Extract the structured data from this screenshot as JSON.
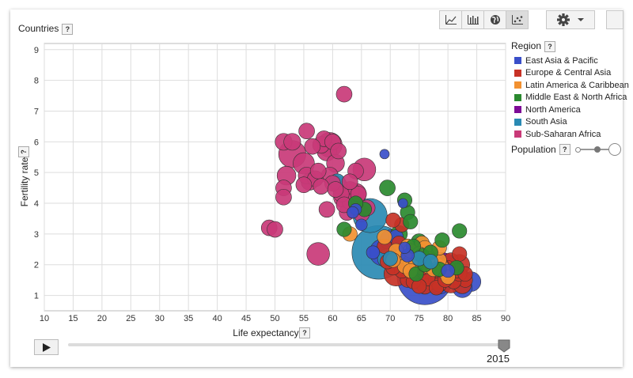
{
  "toolbar": {
    "buttons": [
      {
        "icon": "line-chart-icon"
      },
      {
        "icon": "bar-chart-icon"
      },
      {
        "icon": "globe-icon"
      },
      {
        "icon": "bubble-chart-icon",
        "active": true
      }
    ],
    "settings_icon": "gear-icon"
  },
  "countries_label": "Countries",
  "help_label": "?",
  "region_title": "Region",
  "population_label": "Population",
  "year": "2015",
  "chart_data": {
    "type": "scatter",
    "xlabel": "Life expectancy",
    "ylabel": "Fertility rate",
    "xlim": [
      10,
      90
    ],
    "ylim": [
      0.5,
      9.2
    ],
    "xticks": [
      10,
      15,
      20,
      25,
      30,
      35,
      40,
      45,
      50,
      55,
      60,
      65,
      70,
      75,
      80,
      85,
      90
    ],
    "yticks": [
      1,
      2,
      3,
      4,
      5,
      6,
      7,
      8,
      9
    ],
    "grid": true,
    "legend_position": "right",
    "series": [
      {
        "name": "East Asia & Pacific",
        "color": "#3a4fc9",
        "points": [
          [
            76,
            1.6,
            1.0
          ],
          [
            84,
            1.45,
            0.09
          ],
          [
            68.7,
            2.4,
            0.19
          ],
          [
            78.5,
            1.45,
            0.16
          ],
          [
            82.5,
            1.25,
            0.09
          ],
          [
            70,
            2.8,
            0.1
          ],
          [
            73,
            2.1,
            0.1
          ],
          [
            69,
            5.6,
            0.01
          ],
          [
            65,
            3.3,
            0.02
          ],
          [
            64,
            3.8,
            0.02
          ],
          [
            73,
            2.3,
            0.03
          ],
          [
            71,
            2.9,
            0.04
          ],
          [
            80,
            1.8,
            0.03
          ],
          [
            75,
            1.8,
            0.04
          ],
          [
            67,
            2.4,
            0.03
          ],
          [
            63.5,
            3.7,
            0.02
          ],
          [
            72.2,
            4.0,
            0.01
          ],
          [
            72.5,
            2.55,
            0.02
          ]
        ]
      },
      {
        "name": "Europe & Central Asia",
        "color": "#c73226",
        "points": [
          [
            82,
            2.0,
            0.1
          ],
          [
            81.5,
            1.6,
            0.09
          ],
          [
            80.5,
            1.4,
            0.09
          ],
          [
            71,
            1.7,
            0.15
          ],
          [
            82.5,
            1.35,
            0.07
          ],
          [
            77,
            1.45,
            0.06
          ],
          [
            80,
            1.65,
            0.06
          ],
          [
            74,
            1.6,
            0.05
          ],
          [
            76,
            1.3,
            0.05
          ],
          [
            78,
            1.5,
            0.05
          ],
          [
            79,
            1.7,
            0.04
          ],
          [
            81,
            1.9,
            0.04
          ],
          [
            83,
            1.5,
            0.04
          ],
          [
            75,
            1.7,
            0.04
          ],
          [
            73,
            1.5,
            0.04
          ],
          [
            72,
            1.8,
            0.04
          ],
          [
            71.5,
            2.7,
            0.04
          ],
          [
            70.5,
            1.9,
            0.04
          ],
          [
            69.5,
            2.1,
            0.04
          ],
          [
            69,
            2.6,
            0.04
          ],
          [
            74.5,
            2.1,
            0.04
          ],
          [
            81,
            1.45,
            0.04
          ],
          [
            78.5,
            1.35,
            0.04
          ],
          [
            77.5,
            2.0,
            0.04
          ],
          [
            80.5,
            2.15,
            0.04
          ],
          [
            82,
            1.7,
            0.04
          ],
          [
            76.5,
            1.55,
            0.04
          ],
          [
            75.5,
            1.9,
            0.04
          ],
          [
            78,
            1.25,
            0.04
          ],
          [
            79.5,
            1.5,
            0.04
          ],
          [
            73.5,
            2.3,
            0.04
          ],
          [
            77,
            2.4,
            0.04
          ],
          [
            82,
            2.35,
            0.04
          ],
          [
            72,
            3.3,
            0.04
          ],
          [
            70.5,
            3.45,
            0.04
          ],
          [
            81.5,
            1.8,
            0.04
          ],
          [
            80,
            1.9,
            0.04
          ],
          [
            76,
            2.1,
            0.04
          ],
          [
            74,
            1.45,
            0.04
          ],
          [
            83,
            1.7,
            0.04
          ],
          [
            75,
            1.3,
            0.04
          ],
          [
            79,
            1.95,
            0.04
          ]
        ]
      },
      {
        "name": "Latin America & Caribbean",
        "color": "#f29131",
        "points": [
          [
            75,
            1.8,
            0.14
          ],
          [
            77,
            2.2,
            0.08
          ],
          [
            74.5,
            2.5,
            0.05
          ],
          [
            76,
            2.3,
            0.05
          ],
          [
            79,
            1.9,
            0.04
          ],
          [
            73,
            2.6,
            0.04
          ],
          [
            72,
            2.3,
            0.04
          ],
          [
            69,
            2.9,
            0.04
          ],
          [
            75.5,
            2.2,
            0.04
          ],
          [
            78,
            2.0,
            0.04
          ],
          [
            77,
            2.4,
            0.04
          ],
          [
            74,
            2.3,
            0.04
          ],
          [
            79.5,
            1.75,
            0.04
          ],
          [
            76.5,
            1.95,
            0.04
          ],
          [
            73.5,
            2.1,
            0.04
          ],
          [
            71,
            2.45,
            0.04
          ],
          [
            75.5,
            2.7,
            0.04
          ],
          [
            63,
            3.0,
            0.04
          ],
          [
            72.5,
            1.95,
            0.04
          ],
          [
            80,
            1.6,
            0.04
          ],
          [
            78.5,
            2.15,
            0.04
          ],
          [
            77.5,
            1.85,
            0.04
          ],
          [
            70.5,
            2.15,
            0.04
          ],
          [
            76,
            2.55,
            0.04
          ],
          [
            73.5,
            2.45,
            0.04
          ],
          [
            74.5,
            2.05,
            0.04
          ],
          [
            78.5,
            2.55,
            0.04
          ],
          [
            75,
            2.35,
            0.04
          ],
          [
            76.5,
            2.2,
            0.04
          ],
          [
            73.5,
            1.8,
            0.04
          ]
        ]
      },
      {
        "name": "Middle East & North Africa",
        "color": "#2a8a2f",
        "points": [
          [
            71.5,
            3.0,
            0.06
          ],
          [
            75,
            2.75,
            0.05
          ],
          [
            69.5,
            4.5,
            0.05
          ],
          [
            74.5,
            1.7,
            0.04
          ],
          [
            73,
            3.7,
            0.04
          ],
          [
            75.5,
            2.3,
            0.04
          ],
          [
            73.5,
            3.4,
            0.04
          ],
          [
            82,
            3.1,
            0.04
          ],
          [
            77,
            2.4,
            0.04
          ],
          [
            76,
            2.0,
            0.04
          ],
          [
            74,
            2.6,
            0.04
          ],
          [
            65.5,
            3.8,
            0.04
          ],
          [
            64,
            4.0,
            0.04
          ],
          [
            62,
            3.15,
            0.04
          ],
          [
            72.5,
            4.1,
            0.04
          ],
          [
            78.5,
            1.85,
            0.04
          ],
          [
            81.5,
            1.9,
            0.04
          ],
          [
            79,
            2.8,
            0.04
          ]
        ]
      },
      {
        "name": "North America",
        "color": "#7d0b96",
        "points": [
          [
            79,
            1.85,
            0.32
          ],
          [
            82,
            1.6,
            0.08
          ]
        ]
      },
      {
        "name": "South Asia",
        "color": "#2a8ab3",
        "points": [
          [
            68,
            2.4,
            0.93
          ],
          [
            66.5,
            3.6,
            0.34
          ],
          [
            72,
            2.15,
            0.26
          ],
          [
            69.5,
            2.2,
            0.09
          ],
          [
            75,
            2.2,
            0.04
          ],
          [
            60.8,
            4.7,
            0.05
          ],
          [
            70,
            2.2,
            0.04
          ],
          [
            77,
            2.1,
            0.04
          ]
        ]
      },
      {
        "name": "Sub-Saharan Africa",
        "color": "#c93a78",
        "points": [
          [
            53,
            5.6,
            0.2
          ],
          [
            57.5,
            2.35,
            0.13
          ],
          [
            59.5,
            5.9,
            0.16
          ],
          [
            55,
            5.3,
            0.11
          ],
          [
            65.5,
            5.1,
            0.13
          ],
          [
            64,
            4.3,
            0.11
          ],
          [
            62,
            4.2,
            0.11
          ],
          [
            52,
            4.9,
            0.08
          ],
          [
            59,
            5.7,
            0.09
          ],
          [
            63,
            4.4,
            0.08
          ],
          [
            60.5,
            5.3,
            0.07
          ],
          [
            51.5,
            6.0,
            0.06
          ],
          [
            53,
            6.0,
            0.06
          ],
          [
            58,
            5.9,
            0.06
          ],
          [
            59.5,
            4.9,
            0.06
          ],
          [
            61,
            4.6,
            0.06
          ],
          [
            56,
            4.7,
            0.06
          ],
          [
            55.5,
            4.9,
            0.06
          ],
          [
            58.5,
            6.1,
            0.05
          ],
          [
            60,
            6.0,
            0.05
          ],
          [
            62,
            7.55,
            0.05
          ],
          [
            55.5,
            6.35,
            0.05
          ],
          [
            57,
            4.8,
            0.05
          ],
          [
            59,
            3.8,
            0.05
          ],
          [
            62.5,
            3.7,
            0.05
          ],
          [
            51.5,
            4.5,
            0.05
          ],
          [
            51.5,
            4.2,
            0.05
          ],
          [
            49,
            3.2,
            0.05
          ],
          [
            50,
            3.15,
            0.05
          ],
          [
            55,
            4.6,
            0.05
          ],
          [
            57.5,
            5.05,
            0.05
          ],
          [
            61,
            5.7,
            0.05
          ],
          [
            63,
            4.05,
            0.05
          ],
          [
            64.5,
            4.3,
            0.05
          ],
          [
            65,
            3.65,
            0.05
          ],
          [
            61.5,
            4.3,
            0.05
          ],
          [
            60,
            4.65,
            0.05
          ],
          [
            62,
            3.95,
            0.05
          ],
          [
            58,
            4.55,
            0.05
          ],
          [
            64,
            5.05,
            0.05
          ],
          [
            66,
            3.85,
            0.05
          ],
          [
            63,
            4.7,
            0.05
          ],
          [
            60.5,
            4.45,
            0.05
          ],
          [
            56.5,
            5.85,
            0.05
          ]
        ]
      }
    ]
  }
}
